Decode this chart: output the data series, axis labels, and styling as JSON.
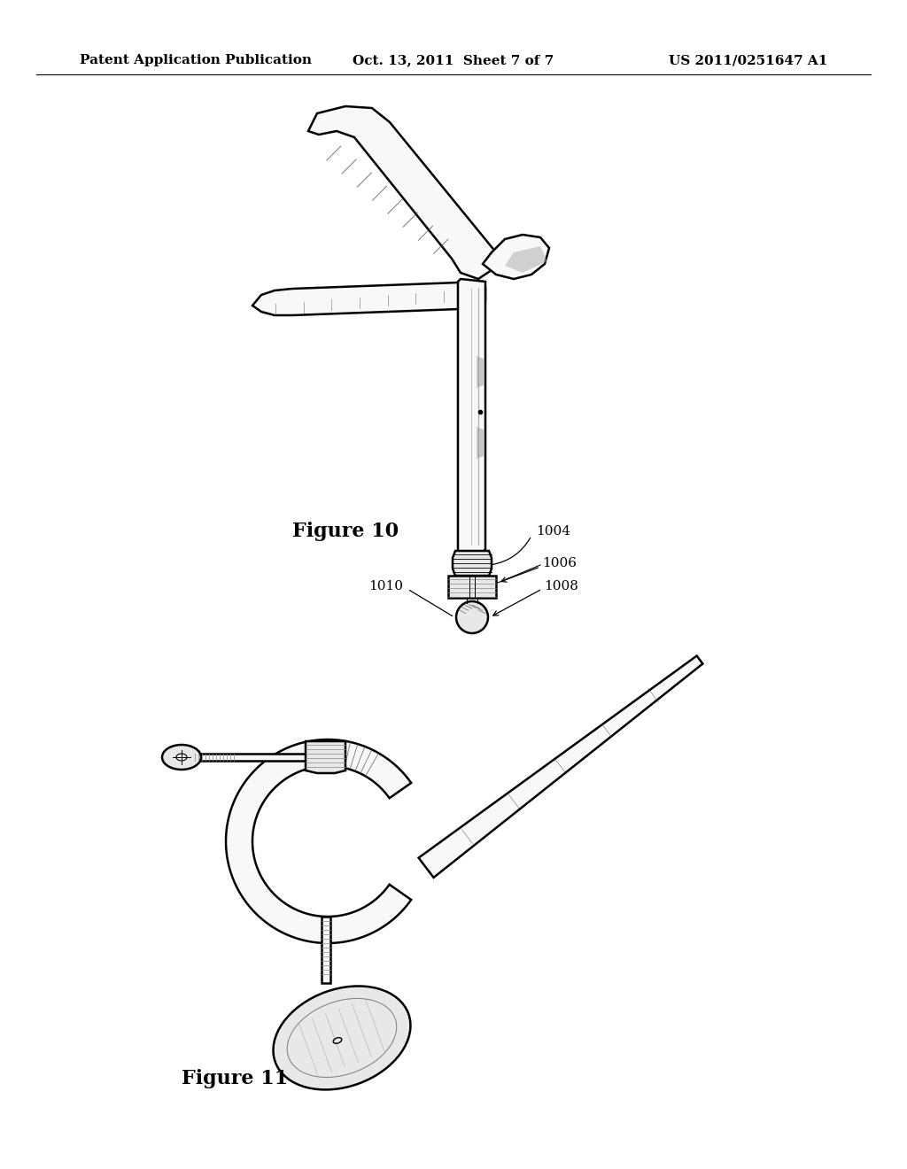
{
  "background_color": "#ffffff",
  "header_left": "Patent Application Publication",
  "header_center": "Oct. 13, 2011  Sheet 7 of 7",
  "header_right": "US 2011/0251647 A1",
  "header_fontsize": 11,
  "figure10_label": "Figure 10",
  "figure11_label": "Figure 11",
  "label_fontsize": 16,
  "ref_fontsize": 11,
  "line_color": "#000000",
  "line_width": 1.8,
  "shade_color": "#555555",
  "fill_light": "#f8f8f8",
  "fill_mid": "#e8e8e8",
  "fill_dark": "#cccccc"
}
